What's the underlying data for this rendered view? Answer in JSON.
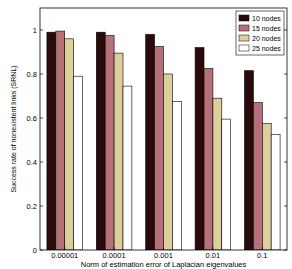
{
  "chart_data": {
    "type": "bar",
    "x_label": "Norm of estimation error of Laplacian eigenvalues",
    "y_label": "Success rate of nonexistent links (SRNL)",
    "categories": [
      "0.00001",
      "0.0001",
      "0.001",
      "0.01",
      "0.1"
    ],
    "series": [
      {
        "name": "10 nodes",
        "color": "#2b0a0c",
        "values": [
          0.99,
          0.99,
          0.98,
          0.92,
          0.815
        ]
      },
      {
        "name": "15 nodes",
        "color": "#b5707a",
        "values": [
          0.995,
          0.975,
          0.925,
          0.825,
          0.67
        ]
      },
      {
        "name": "20 nodes",
        "color": "#dccf9c",
        "values": [
          0.96,
          0.895,
          0.8,
          0.69,
          0.575
        ]
      },
      {
        "name": "25 nodes",
        "color": "#ffffff",
        "values": [
          0.79,
          0.745,
          0.675,
          0.595,
          0.525
        ]
      }
    ],
    "ylim": [
      0,
      1.1
    ],
    "yticks": [
      0,
      0.2,
      0.4,
      0.6,
      0.8,
      1
    ],
    "legend": "upper right",
    "grid": false
  }
}
